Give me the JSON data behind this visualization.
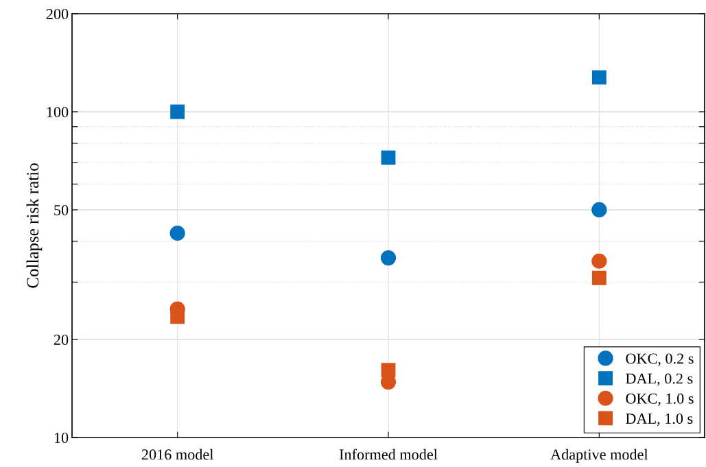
{
  "chart_data": {
    "type": "scatter",
    "ylabel": "Collapse risk ratio",
    "categories": [
      "2016 model",
      "Informed model",
      "Adaptive model"
    ],
    "series": [
      {
        "name": "OKC, 0.2 s",
        "color": "#0072bd",
        "marker": "circle",
        "values": [
          42.4,
          35.6,
          50
        ]
      },
      {
        "name": "DAL, 0.2 s",
        "color": "#0072bd",
        "marker": "square",
        "values": [
          100,
          72.3,
          127.5
        ]
      },
      {
        "name": "OKC, 1.0 s",
        "color": "#d95319",
        "marker": "circle",
        "values": [
          24.8,
          14.8,
          34.8
        ]
      },
      {
        "name": "DAL, 1.0 s",
        "color": "#d95319",
        "marker": "square",
        "values": [
          23.5,
          16.1,
          30.9
        ]
      }
    ],
    "log": "y",
    "ylim": [
      10,
      200
    ],
    "yticks": [
      10,
      20,
      {
        "value": 30,
        "label": null
      },
      {
        "value": 40,
        "label": null
      },
      50,
      {
        "value": 60,
        "label": null
      },
      {
        "value": 70,
        "label": null
      },
      {
        "value": 80,
        "label": null
      },
      {
        "value": 90,
        "label": null
      },
      100,
      200
    ],
    "grid": true,
    "legend": "bottom right"
  }
}
